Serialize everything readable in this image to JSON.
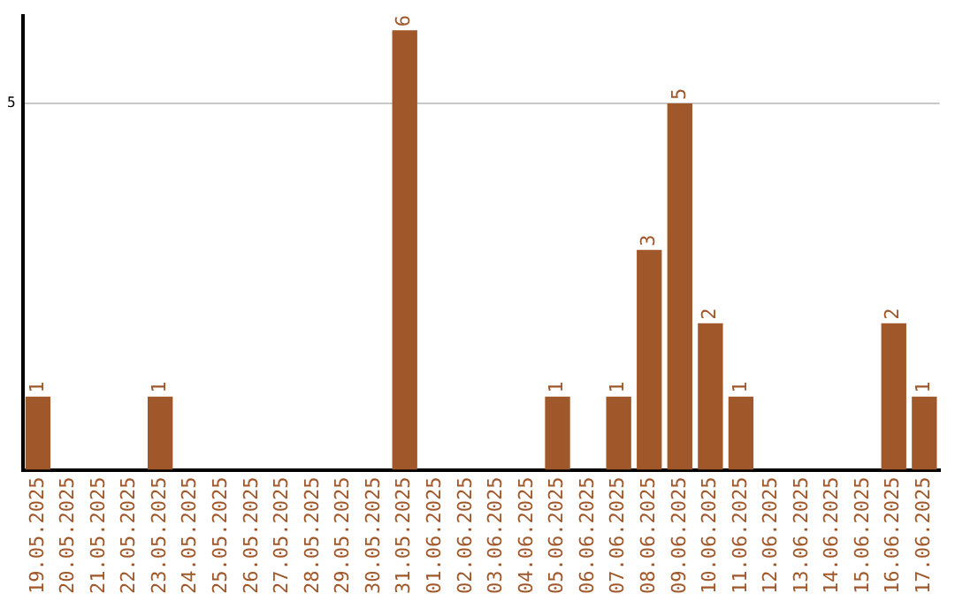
{
  "chart_data": {
    "type": "bar",
    "categories": [
      "19.05.2025",
      "20.05.2025",
      "21.05.2025",
      "22.05.2025",
      "23.05.2025",
      "24.05.2025",
      "25.05.2025",
      "26.05.2025",
      "27.05.2025",
      "28.05.2025",
      "29.05.2025",
      "30.05.2025",
      "31.05.2025",
      "01.06.2025",
      "02.06.2025",
      "03.06.2025",
      "04.06.2025",
      "05.06.2025",
      "06.06.2025",
      "07.06.2025",
      "08.06.2025",
      "09.06.2025",
      "10.06.2025",
      "11.06.2025",
      "12.06.2025",
      "13.06.2025",
      "14.06.2025",
      "15.06.2025",
      "16.06.2025",
      "17.06.2025"
    ],
    "values": [
      1,
      0,
      0,
      0,
      1,
      0,
      0,
      0,
      0,
      0,
      0,
      0,
      6,
      0,
      0,
      0,
      0,
      1,
      0,
      1,
      3,
      5,
      2,
      1,
      0,
      0,
      0,
      0,
      2,
      1
    ],
    "value_labels": [
      "1",
      null,
      null,
      null,
      "1",
      null,
      null,
      null,
      null,
      null,
      null,
      null,
      "6",
      null,
      null,
      null,
      null,
      "1",
      null,
      "1",
      "3",
      "5",
      "2",
      "1",
      null,
      null,
      null,
      null,
      "2",
      "1"
    ],
    "color": "#a0572a",
    "ylim": [
      0,
      6.2
    ],
    "yticks": [
      5
    ],
    "grid": "y",
    "legend": false
  }
}
